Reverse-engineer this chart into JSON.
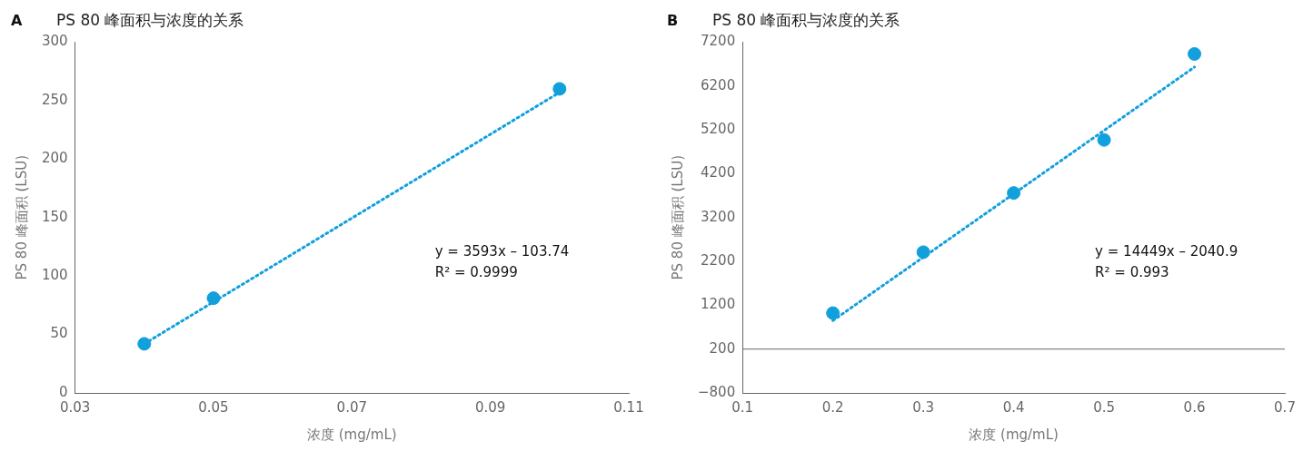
{
  "chart_data": [
    {
      "type": "scatter",
      "title": "PS 80 峰面积与浓度的关系",
      "xlabel": "浓度 (mg/mL)",
      "ylabel": "PS 80 峰面积 (LSU)",
      "xlim": [
        0.03,
        0.11
      ],
      "xticks": [
        0.03,
        0.05,
        0.07,
        0.09,
        0.11
      ],
      "ylim": [
        0,
        300
      ],
      "yticks": [
        0,
        50,
        100,
        150,
        200,
        250,
        300
      ],
      "grid": false,
      "legend": false,
      "annotations": [
        "A",
        "y = 3593x – 103.74",
        "R² = 0.9999"
      ],
      "series": [
        {
          "type": "scatter",
          "marker": "circle",
          "color": "#11a0dc",
          "x": [
            0.04,
            0.05,
            0.1
          ],
          "values": [
            42,
            81,
            260
          ]
        },
        {
          "type": "line",
          "marker": "none",
          "line_style": "dotted",
          "color": "#11a0dc",
          "x": [
            0.04,
            0.1
          ],
          "values": [
            42,
            257
          ]
        }
      ]
    },
    {
      "type": "scatter",
      "title": "PS 80 峰面积与浓度的关系",
      "xlabel": "浓度 (mg/mL)",
      "ylabel": "PS 80 峰面积 (LSU)",
      "xlim": [
        0.1,
        0.7
      ],
      "xticks": [
        0.1,
        0.2,
        0.3,
        0.4,
        0.5,
        0.6,
        0.7
      ],
      "ylim": [
        -800,
        7200
      ],
      "yticks": [
        {
          "value": -800,
          "label": "−800"
        },
        200,
        1200,
        2200,
        3200,
        4200,
        5200,
        6200,
        7200
      ],
      "grid": false,
      "legend": false,
      "ref_lines": [
        {
          "axis": "y",
          "value": 200,
          "color": "#666666"
        }
      ],
      "annotations": [
        "B",
        "y = 14449x – 2040.9",
        "R² = 0.993"
      ],
      "series": [
        {
          "type": "scatter",
          "marker": "circle",
          "color": "#11a0dc",
          "x": [
            0.2,
            0.3,
            0.4,
            0.5,
            0.6
          ],
          "values": [
            1020,
            2410,
            3760,
            4970,
            6930
          ]
        },
        {
          "type": "line",
          "marker": "none",
          "line_style": "dotted",
          "color": "#11a0dc",
          "x": [
            0.2,
            0.6
          ],
          "values": [
            850,
            6630
          ]
        }
      ]
    }
  ]
}
